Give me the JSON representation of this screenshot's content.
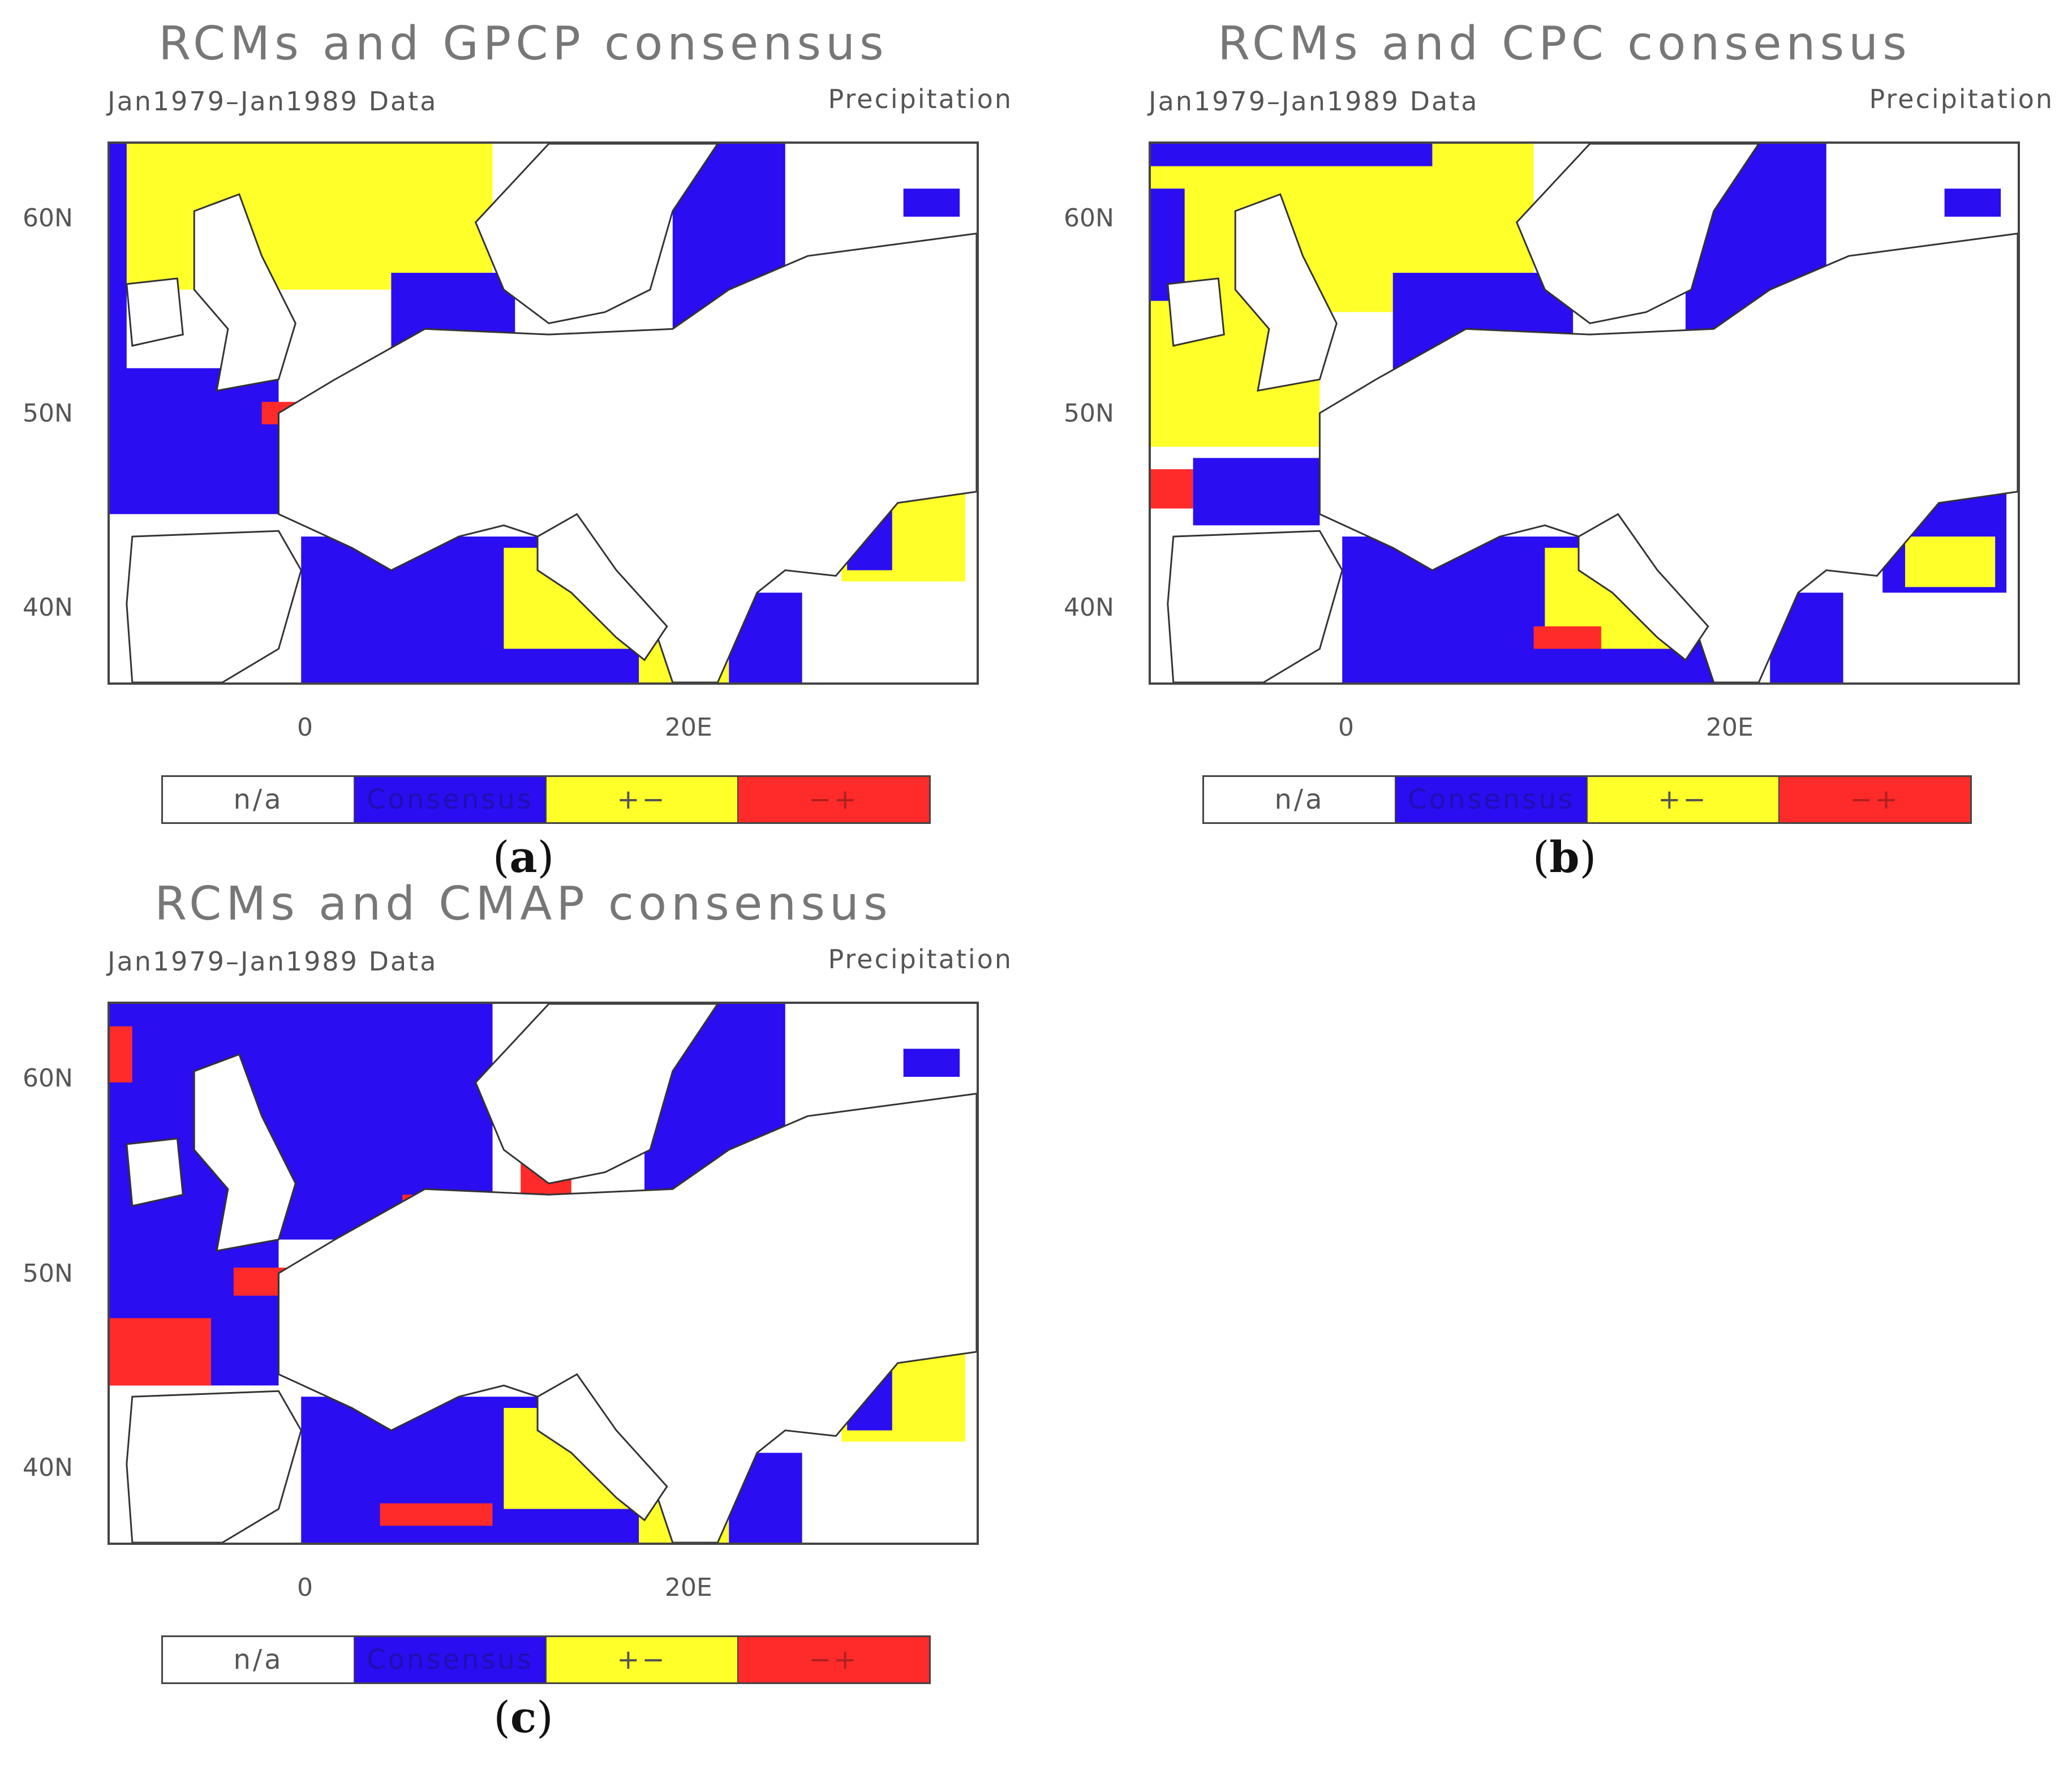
{
  "panels": [
    {
      "title": "RCMs and GPCP consensus",
      "subtitle": "Jan1979–Jan1989 Data",
      "variable": "Precipitation",
      "caption_letter": "a"
    },
    {
      "title": "RCMs and CPC consensus",
      "subtitle": "Jan1979–Jan1989 Data",
      "variable": "Precipitation",
      "caption_letter": "b"
    },
    {
      "title": "RCMs and CMAP consensus",
      "subtitle": "Jan1979–Jan1989 Data",
      "variable": "Precipitation",
      "caption_letter": "c"
    }
  ],
  "axes": {
    "lat_labels": [
      "60N",
      "50N",
      "40N"
    ],
    "lon_labels": [
      "0",
      "20E"
    ]
  },
  "legend": {
    "labels": [
      "n/a",
      "Consensus",
      "+−",
      "−+"
    ]
  },
  "colors": {
    "na": "#ffffff",
    "consensus": "#2a0df0",
    "plus_minus": "#ffff2a",
    "minus_plus": "#ff2a2a"
  },
  "map_data": {
    "region": "Europe",
    "lon_range": [
      -10,
      35
    ],
    "lat_range": [
      36,
      64
    ],
    "lat_ticks": [
      60,
      50,
      40
    ],
    "lon_ticks": [
      0,
      20
    ]
  }
}
